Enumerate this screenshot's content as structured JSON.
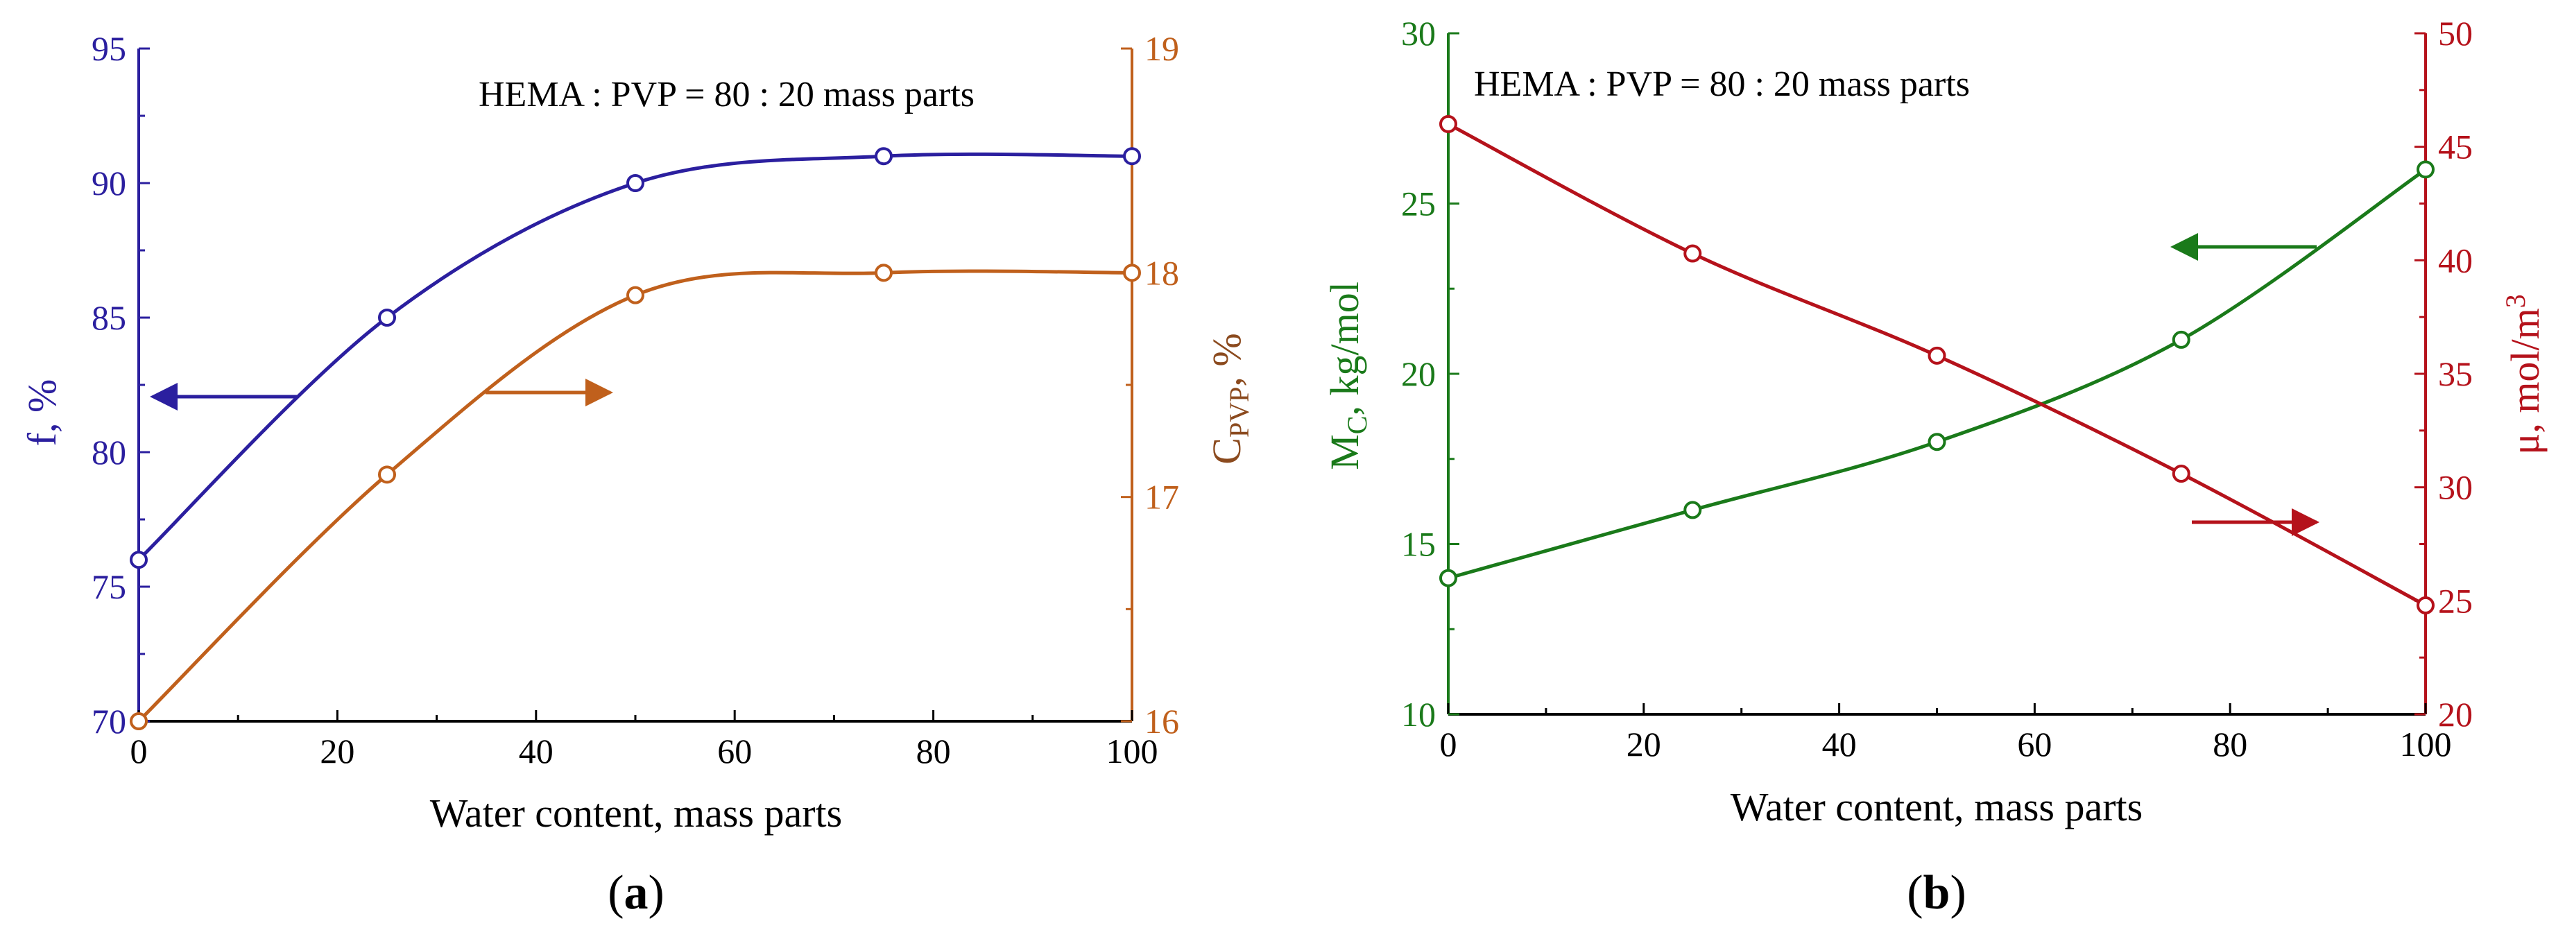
{
  "colors": {
    "blue": "#2b1f9f",
    "orange": "#c0601c",
    "green": "#1a7a1a",
    "red": "#b5121b",
    "axis": "#000000"
  },
  "chart_data": [
    {
      "type": "line",
      "panel_label": {
        "open": "(",
        "letter": "a",
        "close": ")"
      },
      "annotation": "HEMA : PVP = 80 : 20 mass parts",
      "xlabel": "Water content, mass parts",
      "xlim": [
        0,
        100
      ],
      "xticks": [
        0,
        20,
        40,
        60,
        80,
        100
      ],
      "left_axis": {
        "label_main": "f, %",
        "ylim": [
          70,
          95
        ],
        "ticks": [
          70,
          75,
          80,
          85,
          90,
          95
        ]
      },
      "right_axis": {
        "label_base": "C",
        "label_sub": "PVP",
        "label_rest": ", %",
        "ylim": [
          16,
          19
        ],
        "ticks": [
          16,
          17,
          18,
          19
        ]
      },
      "series": [
        {
          "axis": "left",
          "color": "blue",
          "x": [
            0,
            25,
            50,
            75,
            100
          ],
          "y": [
            76,
            85,
            90,
            91,
            91
          ]
        },
        {
          "axis": "right",
          "color": "orange",
          "x": [
            0,
            25,
            50,
            75,
            100
          ],
          "y": [
            16,
            17.1,
            17.9,
            18,
            18
          ]
        }
      ],
      "grid": false
    },
    {
      "type": "line",
      "panel_label": {
        "open": "(",
        "letter": "b",
        "close": ")"
      },
      "annotation": "HEMA : PVP = 80 : 20 mass parts",
      "xlabel": "Water content, mass parts",
      "xlim": [
        0,
        100
      ],
      "xticks": [
        0,
        20,
        40,
        60,
        80,
        100
      ],
      "left_axis": {
        "label_base": "M",
        "label_sub": "C",
        "label_rest": ", kg/mol",
        "ylim": [
          10,
          30
        ],
        "ticks": [
          10,
          15,
          20,
          25,
          30
        ]
      },
      "right_axis": {
        "label_base": "μ, mol/m",
        "label_sup": "3",
        "ylim": [
          20,
          50
        ],
        "ticks": [
          20,
          25,
          30,
          35,
          40,
          45,
          50
        ]
      },
      "series": [
        {
          "axis": "left",
          "color": "green",
          "x": [
            0,
            25,
            50,
            75,
            100
          ],
          "y": [
            14,
            16,
            18,
            21,
            26
          ]
        },
        {
          "axis": "right",
          "color": "red",
          "x": [
            0,
            25,
            50,
            75,
            100
          ],
          "y": [
            46,
            40.3,
            35.8,
            30.6,
            24.8
          ]
        }
      ],
      "grid": false
    }
  ]
}
